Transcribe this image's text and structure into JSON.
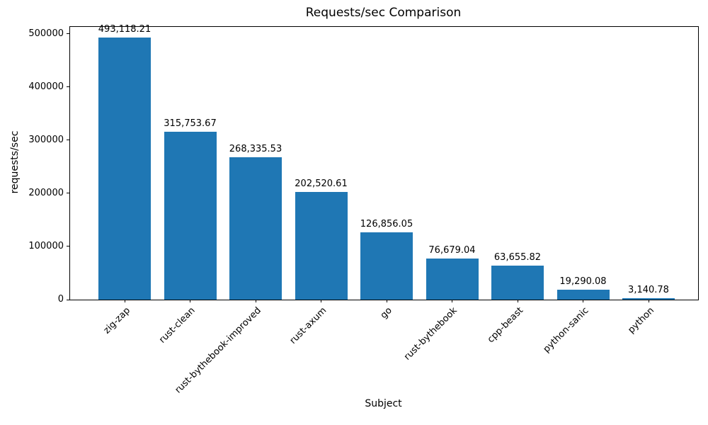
{
  "chart_data": {
    "type": "bar",
    "title": "Requests/sec Comparison",
    "xlabel": "Subject",
    "ylabel": "requests/sec",
    "categories": [
      "zig-zap",
      "rust-clean",
      "rust-bythebook-improved",
      "rust-axum",
      "go",
      "rust-bythebook",
      "cpp-beast",
      "python-sanic",
      "python"
    ],
    "values": [
      493118.21,
      315753.67,
      268335.53,
      202520.61,
      126856.05,
      76679.04,
      63655.82,
      19290.08,
      3140.78
    ],
    "value_labels": [
      "493,118.21",
      "315,753.67",
      "268,335.53",
      "202,520.61",
      "126,856.05",
      "76,679.04",
      "63,655.82",
      "19,290.08",
      "3,140.78"
    ],
    "ytick_labels": [
      "0",
      "100000",
      "200000",
      "300000",
      "400000",
      "500000"
    ],
    "yticks": [
      0,
      100000,
      200000,
      300000,
      400000,
      500000
    ],
    "ylim": [
      0,
      513000
    ],
    "bar_color": "#1f77b4",
    "grid": false,
    "legend_position": "none",
    "x_tick_rotation_deg": 45
  }
}
